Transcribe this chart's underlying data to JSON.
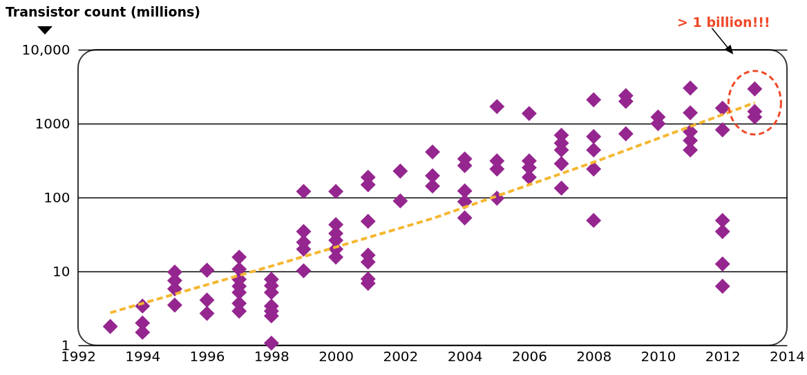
{
  "chart_data": {
    "type": "scatter",
    "ylabel": "Transistor count (millions)",
    "xlim": [
      1992,
      2014
    ],
    "xticks": [
      1992,
      1994,
      1996,
      1998,
      2000,
      2002,
      2004,
      2006,
      2008,
      2010,
      2012,
      2014
    ],
    "ylim": [
      1,
      10000
    ],
    "yticks": [
      1,
      10,
      100,
      1000,
      {
        "value": 10000,
        "label": "10,000"
      }
    ],
    "log": "y",
    "grid": "y",
    "annotations": [
      "> 1 billion!!!"
    ],
    "series": [
      {
        "color": "#95268f",
        "marker": "diamond",
        "x": [
          1993,
          1994,
          1994,
          1994,
          1995,
          1995,
          1995,
          1995,
          1996,
          1996,
          1996,
          1997,
          1997,
          1997,
          1997,
          1997,
          1997,
          1997,
          1998,
          1998,
          1998,
          1998,
          1998,
          1998,
          1998,
          1999,
          1999,
          1999,
          1999,
          1999,
          2000,
          2000,
          2000,
          2000,
          2000,
          2000,
          2001,
          2001,
          2001,
          2001,
          2001,
          2001,
          2001,
          2002,
          2002,
          2003,
          2003,
          2003,
          2004,
          2004,
          2004,
          2004,
          2004,
          2005,
          2005,
          2005,
          2005,
          2006,
          2006,
          2006,
          2006,
          2007,
          2007,
          2007,
          2007,
          2007,
          2008,
          2008,
          2008,
          2008,
          2008,
          2009,
          2009,
          2009,
          2010,
          2010,
          2011,
          2011,
          2011,
          2011,
          2011,
          2012,
          2012,
          2012,
          2012,
          2012,
          2012,
          2013,
          2013,
          2013
        ],
        "values": [
          1.8,
          3.4,
          2.0,
          1.5,
          9.8,
          7.5,
          5.8,
          3.5,
          10.4,
          4.1,
          2.7,
          15.6,
          10.7,
          7.8,
          6.3,
          5.2,
          3.7,
          2.9,
          7.8,
          6.4,
          5.2,
          3.4,
          2.9,
          2.5,
          1.07,
          121,
          34.7,
          24.8,
          20,
          10.2,
          121,
          43,
          32.6,
          26.4,
          20,
          15.6,
          188,
          149,
          47.7,
          16.6,
          13.4,
          7.9,
          6.9,
          228,
          90,
          413,
          197,
          143,
          333,
          270,
          123,
          88,
          53,
          1700,
          313,
          243,
          98,
          1370,
          313,
          253,
          188,
          696,
          544,
          440,
          287,
          134,
          2100,
          667,
          440,
          243,
          49,
          2390,
          2000,
          728,
          1230,
          1000,
          3030,
          1400,
          777,
          590,
          440,
          1620,
          824,
          49,
          34.7,
          12.6,
          6.3,
          2950,
          1460,
          1230
        ]
      },
      {
        "type": "line",
        "color": "#f5b731",
        "line_style": "dashed",
        "x": [
          1993,
          1998,
          2003,
          2008,
          2013
        ],
        "values": [
          2.76,
          11.8,
          52,
          300,
          1920
        ]
      }
    ]
  }
}
